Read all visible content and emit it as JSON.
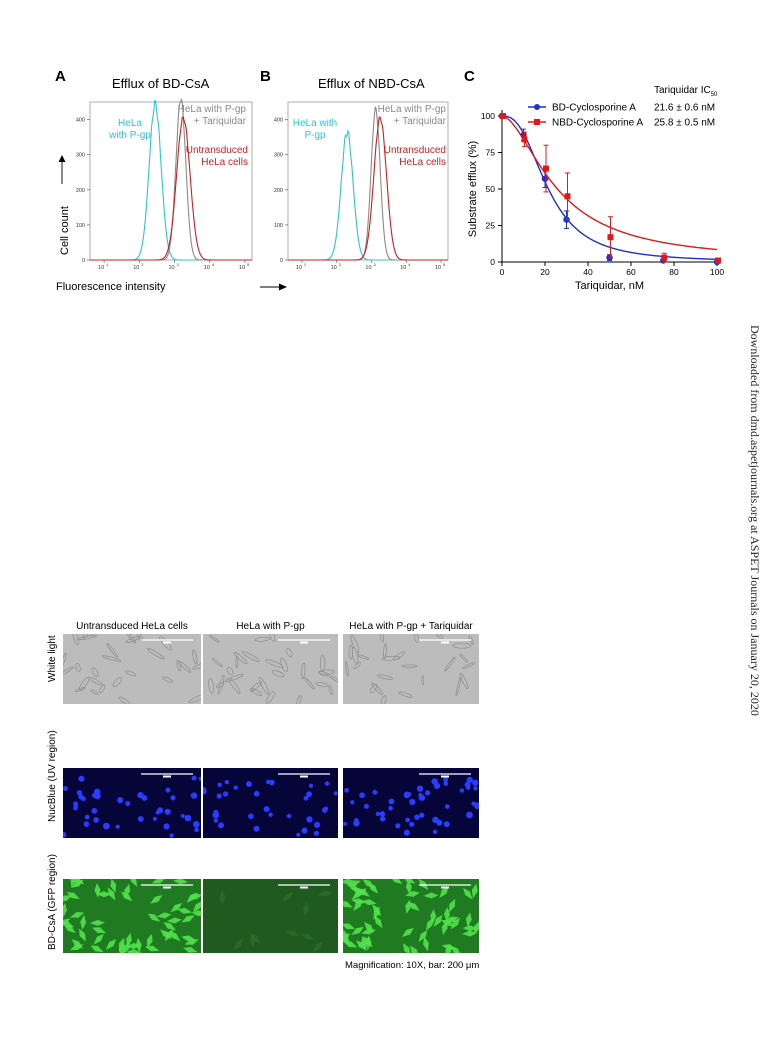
{
  "side_note": "Downloaded from dmd.aspetjournals.org at ASPET Journals on January 20, 2020",
  "panelA": {
    "label": "A",
    "title": "Efflux of BD-CsA",
    "ylabel": "Cell count",
    "xlabel": "Fluorescence intensity",
    "legend_pgp": [
      "HeLa",
      "with P-gp"
    ],
    "legend_tq": [
      "HeLa with P-gp",
      "+ Tariquidar"
    ],
    "legend_un": [
      "Untransduced",
      "HeLa cells"
    ],
    "yticks": [
      "0",
      "100",
      "200",
      "300",
      "400"
    ],
    "xticks": [
      "10",
      "10",
      "10",
      "10",
      "10"
    ],
    "xexp": [
      "1",
      "2",
      "3",
      "4",
      "5"
    ]
  },
  "panelB": {
    "label": "B",
    "title": "Efflux of NBD-CsA",
    "legend_pgp": [
      "HeLa with",
      "P-gp"
    ],
    "legend_tq": [
      "HeLa with P-gp",
      "+ Tariquidar"
    ],
    "legend_un": [
      "Untransduced",
      "HeLa cells"
    ],
    "yticks": [
      "0",
      "100",
      "200",
      "300",
      "400"
    ],
    "xticks": [
      "10",
      "10",
      "10",
      "10",
      "10"
    ],
    "xexp": [
      "1",
      "2",
      "3",
      "4",
      "5"
    ]
  },
  "colors": {
    "pgp": "#29c4dc",
    "tq": "#8a8a8a",
    "un": "#d21c1c",
    "bd": "#1f2fd0",
    "nbd": "#e01818"
  },
  "chart_data": [
    {
      "type": "line",
      "panel": "C",
      "xlabel": "Tariquidar, nM",
      "ylabel": "Substrate efflux (%)",
      "xlim": [
        0,
        100
      ],
      "ylim": [
        0,
        100
      ],
      "xticks": [
        0,
        20,
        40,
        60,
        80,
        100
      ],
      "yticks": [
        0,
        25,
        50,
        75,
        100
      ],
      "legend_header": "Tariquidar IC",
      "legend_header_sub": "50",
      "series": [
        {
          "name": "BD-Cyclosporine A",
          "ic50": "21.6 ± 0.6 nM",
          "marker": "circle",
          "x": [
            0,
            10,
            20,
            30,
            50,
            75,
            100
          ],
          "y": [
            100,
            87,
            57,
            29,
            3,
            1,
            0
          ],
          "err": [
            0,
            4,
            6,
            6,
            2,
            1,
            0
          ]
        },
        {
          "name": "NBD-Cyclosporine A",
          "ic50": "25.8 ± 0.5 nM",
          "marker": "square",
          "x": [
            0,
            10,
            20,
            30,
            50,
            75,
            100
          ],
          "y": [
            100,
            84,
            64,
            45,
            17,
            3,
            1
          ],
          "err": [
            0,
            5,
            16,
            16,
            14,
            3,
            1
          ]
        }
      ]
    }
  ],
  "micro": {
    "columns": [
      "Untransduced HeLa cells",
      "HeLa with P-gp",
      "HeLa with P-gp + Tariquidar"
    ],
    "rows": [
      "White light",
      "NucBlue (UV region)",
      "BD-CsA (GFP region)"
    ],
    "magnification": "Magnification: 10X, bar: 200 μm"
  }
}
